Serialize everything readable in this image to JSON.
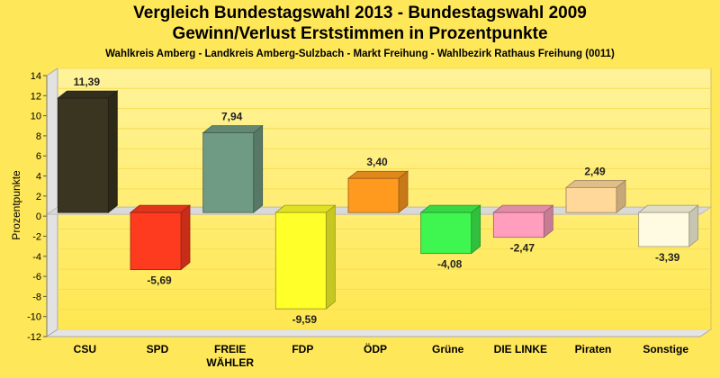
{
  "chart_data": {
    "type": "bar",
    "title": "Vergleich Bundestagswahl 2013 - Bundestagswahl 2009",
    "subtitle": "Gewinn/Verlust Erststimmen in Prozentpunkte",
    "subtitle2": "Wahlkreis Amberg - Landkreis Amberg-Sulzbach - Markt Freihung - Wahlbezirk Rathaus Freihung (0011)",
    "ylabel": "Prozentpunkte",
    "xlabel": "",
    "ylim": [
      -12,
      14
    ],
    "yticks": [
      "14",
      "12",
      "10",
      "8",
      "6",
      "4",
      "2",
      "0",
      "-2",
      "-4",
      "-6",
      "-8",
      "-10",
      "-12"
    ],
    "grid": true,
    "categories": [
      "CSU",
      "SPD",
      "FREIE WÄHLER",
      "FDP",
      "ÖDP",
      "Grüne",
      "DIE LINKE",
      "Piraten",
      "Sonstige"
    ],
    "category_lines": [
      [
        "CSU"
      ],
      [
        "SPD"
      ],
      [
        "FREIE",
        "WÄHLER"
      ],
      [
        "FDP"
      ],
      [
        "ÖDP"
      ],
      [
        "Grüne"
      ],
      [
        "DIE LINKE"
      ],
      [
        "Piraten"
      ],
      [
        "Sonstige"
      ]
    ],
    "values": [
      11.39,
      -5.69,
      7.94,
      -9.59,
      3.4,
      -4.08,
      -2.47,
      2.49,
      -3.39
    ],
    "value_labels": [
      "11,39",
      "-5,69",
      "7,94",
      "-9,59",
      "3,40",
      "-4,08",
      "-2,47",
      "2,49",
      "-3,39"
    ],
    "colors": [
      "#3a3520",
      "#ff3b1f",
      "#6f9a83",
      "#ffff2a",
      "#ff9a1f",
      "#3ff54f",
      "#ff9fbd",
      "#ffd89a",
      "#fffbe2"
    ]
  }
}
